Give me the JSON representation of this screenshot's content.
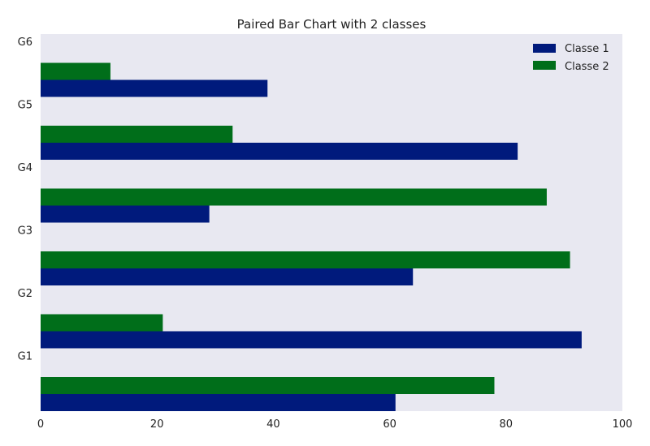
{
  "chart_data": {
    "type": "bar",
    "orientation": "horizontal",
    "title": "Paired Bar Chart with 2 classes",
    "xlabel": "",
    "ylabel": "",
    "categories": [
      "G1",
      "G2",
      "G3",
      "G4",
      "G5",
      "G6"
    ],
    "series": [
      {
        "name": "Classe 1",
        "color": "#001a7c",
        "values": [
          61,
          93,
          64,
          29,
          82,
          39
        ]
      },
      {
        "name": "Classe 2",
        "color": "#006e1a",
        "values": [
          78,
          21,
          91,
          87,
          33,
          12
        ]
      }
    ],
    "xlim": [
      0,
      100
    ],
    "xticks": [
      "0",
      "20",
      "40",
      "60",
      "80",
      "100"
    ],
    "legend_position": "top-right",
    "grid": false,
    "background_color": "#e8e8f1"
  }
}
